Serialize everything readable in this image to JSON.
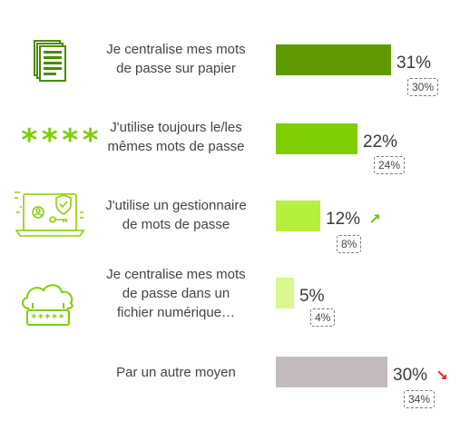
{
  "chart_data": {
    "type": "bar",
    "orientation": "horizontal",
    "categories": [
      "Je centralise mes mots de passe sur papier",
      "J'utilise toujours le/les mêmes mots de passe",
      "J'utilise un gestionnaire de mots de passe",
      "Je centralise mes mots de passe dans un fichier numérique…",
      "Par un autre moyen"
    ],
    "label_lines": [
      [
        "Je centralise mes mots",
        "de passe sur papier"
      ],
      [
        "J'utilise toujours le/les",
        "mêmes mots de passe"
      ],
      [
        "J'utilise un gestionnaire",
        "de mots de passe"
      ],
      [
        "Je centralise mes mots",
        "de passe dans un",
        "fichier numérique…"
      ],
      [
        "Par un autre moyen"
      ]
    ],
    "series": [
      {
        "values": [
          31,
          22,
          12,
          5,
          30
        ]
      },
      {
        "values": [
          30,
          24,
          8,
          4,
          34
        ]
      }
    ],
    "value_labels": [
      "31%",
      "22%",
      "12%",
      "5%",
      "30%"
    ],
    "previous_labels": [
      "30%",
      "24%",
      "8%",
      "4%",
      "34%"
    ],
    "trends": [
      "",
      "",
      "up",
      "",
      "down"
    ],
    "colors": [
      "#5f9b00",
      "#7fce00",
      "#b6ef3f",
      "#d9f98e",
      "#c4bcbc"
    ],
    "trend_colors": {
      "up": "#6cc400",
      "down": "#e02020"
    },
    "icons": [
      "document-stack-icon",
      "password-asterisks-icon",
      "laptop-security-icon",
      "cloud-password-icon",
      ""
    ],
    "asterisks_text": "****",
    "cloud_box_text": "*****",
    "xlim": [
      0,
      40
    ]
  }
}
